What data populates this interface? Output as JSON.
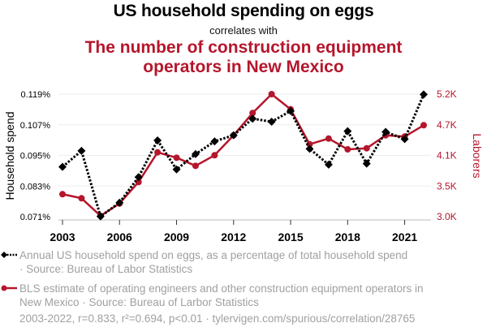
{
  "header": {
    "title": "US household spending on eggs",
    "subtitle": "correlates with",
    "title2_line1": "The number of construction equipment",
    "title2_line2": "operators in New Mexico"
  },
  "legend": {
    "series1_line1": "Annual US household spend on eggs, as a percentage of total household spend",
    "series1_line2": "· Source: Bureau of Labor Statistics",
    "series2_line1": "BLS estimate of operating engineers and other construction equipment operators in",
    "series2_line2": "New Mexico · Source: Bureau of Larbor Statistics"
  },
  "footer": "2003-2022, r=0.833, r²=0.694, p<0.01 · tylervigen.com/spurious/correlation/28765",
  "colors": {
    "series1": "#000000",
    "series2": "#b5162c",
    "grid": "#eeeeee",
    "axis": "#bbbbbb"
  },
  "chart_data": {
    "type": "line",
    "title": "US household spending on eggs correlates with The number of construction equipment operators in New Mexico",
    "x": [
      2003,
      2004,
      2005,
      2006,
      2007,
      2008,
      2009,
      2010,
      2011,
      2012,
      2013,
      2014,
      2015,
      2016,
      2017,
      2018,
      2019,
      2020,
      2021,
      2022
    ],
    "xticks": [
      "2003",
      "2006",
      "2009",
      "2012",
      "2015",
      "2018",
      "2021"
    ],
    "xtick_values": [
      2003,
      2006,
      2009,
      2012,
      2015,
      2018,
      2021
    ],
    "xlim": [
      2003,
      2022
    ],
    "ylabel": "Household spend",
    "y2label": "Laborers",
    "ylim": [
      0.071,
      0.119
    ],
    "y2lim": [
      3000,
      5200
    ],
    "yticks": [
      "0.119%",
      "0.107%",
      "0.095%",
      "0.083%",
      "0.071%"
    ],
    "ytick_values": [
      0.119,
      0.107,
      0.095,
      0.083,
      0.071
    ],
    "y2ticks": [
      "5.2K",
      "4.7K",
      "4.1K",
      "3.5K",
      "3.0K"
    ],
    "y2tick_values": [
      5200,
      4650,
      4100,
      3550,
      3000
    ],
    "grid": true,
    "legend_position": "bottom",
    "series": [
      {
        "name": "Annual US household spend on eggs, as a percentage of total household spend",
        "axis": "left",
        "style": "dotted-diamond",
        "values": [
          0.0905,
          0.0968,
          0.0711,
          0.0765,
          0.0865,
          0.1009,
          0.0895,
          0.0955,
          0.1005,
          0.1029,
          0.1094,
          0.1082,
          0.1124,
          0.0976,
          0.0914,
          0.1045,
          0.0918,
          0.1042,
          0.1014,
          0.1189
        ]
      },
      {
        "name": "BLS estimate of operating engineers and other construction equipment operators in New Mexico",
        "axis": "right",
        "style": "solid-circle",
        "values": [
          3404,
          3331,
          3015,
          3237,
          3622,
          4155,
          4059,
          3913,
          4103,
          4461,
          4861,
          5200,
          4928,
          4301,
          4403,
          4209,
          4228,
          4461,
          4438,
          4642
        ]
      }
    ]
  }
}
